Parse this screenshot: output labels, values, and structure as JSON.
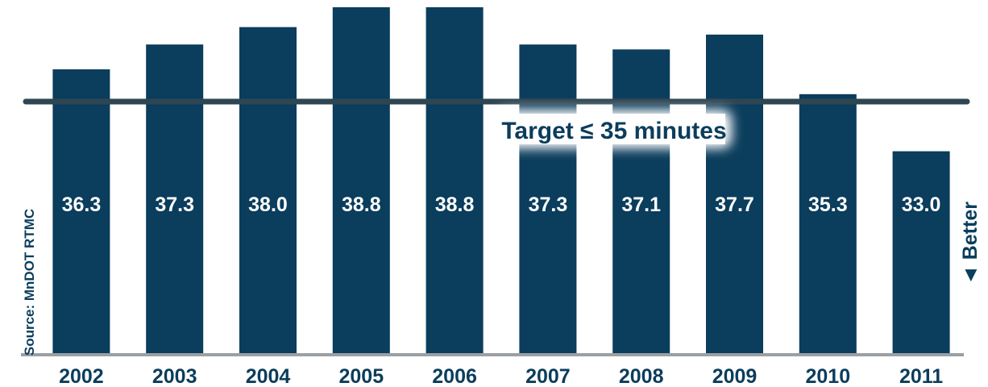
{
  "chart_data": {
    "type": "bar",
    "title": "",
    "xlabel": "",
    "ylabel": "",
    "categories": [
      "2002",
      "2003",
      "2004",
      "2005",
      "2006",
      "2007",
      "2008",
      "2009",
      "2010",
      "2011"
    ],
    "values": [
      36.3,
      37.3,
      38.0,
      38.8,
      38.8,
      37.3,
      37.1,
      37.7,
      35.3,
      33.0
    ],
    "value_labels": [
      "36.3",
      "37.3",
      "38.0",
      "38.8",
      "38.8",
      "37.3",
      "37.1",
      "37.7",
      "35.3",
      "33.0"
    ],
    "ylim": [
      24.8,
      38.8
    ],
    "grid": false,
    "legend": "none",
    "colors": {
      "bar": "#0b3d5c",
      "target_line": "#2e4652",
      "axis": "#9aa0a4",
      "text": "#0b3d5c",
      "value_text": "#ffffff"
    },
    "target": {
      "value": 35,
      "label": "Target ≤ 35 minutes"
    },
    "annotations": {
      "source": "Source: MnDOT RTMC",
      "direction": "◄ Better"
    }
  }
}
